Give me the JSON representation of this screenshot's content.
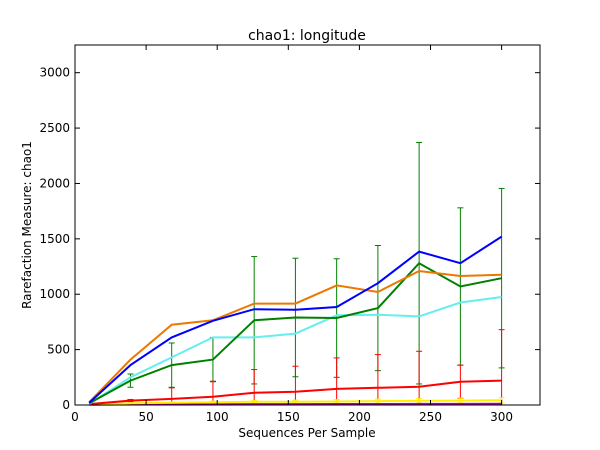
{
  "chart_data": {
    "type": "line",
    "title": "chao1: longitude",
    "xlabel": "Sequences Per Sample",
    "ylabel": "Rarefaction Measure: chao1",
    "xlim": [
      0,
      327
    ],
    "ylim": [
      0,
      3250
    ],
    "xticks": [
      0,
      50,
      100,
      150,
      200,
      250,
      300
    ],
    "yticks": [
      0,
      500,
      1000,
      1500,
      2000,
      2500,
      3000
    ],
    "grid": false,
    "legend": "none",
    "x": [
      10,
      39,
      68,
      97,
      126,
      155,
      184,
      213,
      242,
      271,
      300
    ],
    "series": [
      {
        "color": "#0000ff",
        "values": [
          20,
          360,
          610,
          760,
          865,
          860,
          885,
          1100,
          1385,
          1280,
          1520
        ],
        "errors": [
          0,
          0,
          0,
          0,
          0,
          0,
          0,
          0,
          0,
          0,
          0
        ]
      },
      {
        "color": "#ee7700",
        "values": [
          25,
          410,
          725,
          765,
          915,
          915,
          1080,
          1020,
          1210,
          1165,
          1175
        ],
        "errors": [
          0,
          0,
          0,
          0,
          0,
          0,
          0,
          0,
          0,
          0,
          0
        ]
      },
      {
        "color": "#008000",
        "values": [
          15,
          220,
          360,
          410,
          765,
          790,
          785,
          875,
          1280,
          1070,
          1145
        ],
        "errors": [
          0,
          60,
          200,
          200,
          575,
          535,
          535,
          565,
          1090,
          710,
          810
        ]
      },
      {
        "color": "#66eeee",
        "values": [
          10,
          250,
          430,
          610,
          610,
          645,
          810,
          815,
          800,
          925,
          975
        ],
        "errors": [
          0,
          0,
          0,
          0,
          0,
          0,
          0,
          0,
          0,
          0,
          0
        ]
      },
      {
        "color": "#ff0000",
        "values": [
          8,
          40,
          55,
          75,
          110,
          120,
          145,
          155,
          165,
          210,
          220
        ],
        "errors": [
          0,
          10,
          100,
          140,
          210,
          230,
          280,
          300,
          320,
          150,
          460
        ]
      },
      {
        "color": "#ffee00",
        "values": [
          3,
          15,
          20,
          25,
          30,
          30,
          32,
          35,
          38,
          40,
          42
        ],
        "errors": [
          0,
          5,
          8,
          10,
          12,
          14,
          16,
          18,
          20,
          22,
          24
        ]
      },
      {
        "color": "#aa00aa",
        "values": [
          2,
          5,
          6,
          7,
          8,
          8,
          9,
          9,
          10,
          10,
          11
        ],
        "errors": [
          0,
          0,
          0,
          0,
          0,
          0,
          0,
          0,
          0,
          0,
          0
        ]
      }
    ]
  }
}
